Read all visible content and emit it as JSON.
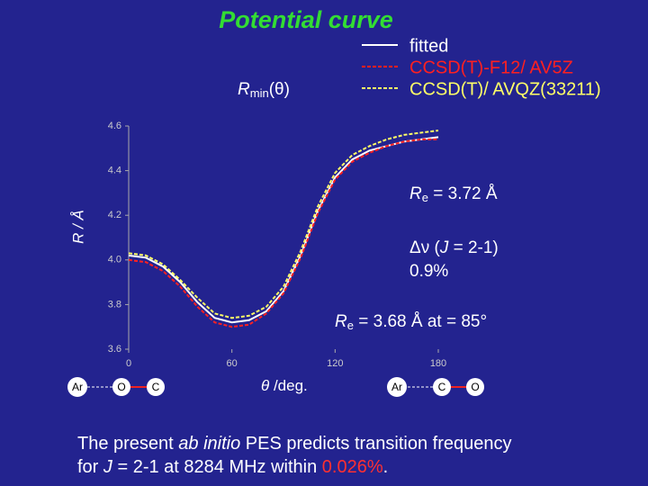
{
  "chart_data": {
    "type": "line",
    "title": "Potential curve",
    "rmin_label": [
      "R",
      "min",
      "(θ)"
    ],
    "xlabel": [
      "θ",
      " /deg."
    ],
    "ylabel": "R / Å",
    "x": [
      0,
      10,
      20,
      30,
      40,
      50,
      60,
      70,
      80,
      90,
      100,
      110,
      120,
      130,
      140,
      150,
      160,
      170,
      180
    ],
    "series": [
      {
        "name": "fitted",
        "color": "#ffffff",
        "dash": "none",
        "values": [
          4.02,
          4.01,
          3.97,
          3.9,
          3.81,
          3.74,
          3.72,
          3.73,
          3.77,
          3.86,
          4.02,
          4.22,
          4.37,
          4.45,
          4.49,
          4.51,
          4.53,
          4.54,
          4.55
        ]
      },
      {
        "name": "CCSD(T)-F12/ AV5Z",
        "color": "#ff2020",
        "dash": "4 2",
        "values": [
          4.0,
          3.99,
          3.95,
          3.88,
          3.79,
          3.72,
          3.7,
          3.71,
          3.76,
          3.85,
          4.01,
          4.21,
          4.36,
          4.44,
          4.48,
          4.51,
          4.53,
          4.54,
          4.54
        ]
      },
      {
        "name": "CCSD(T)/ AVQZ(33211)",
        "color": "#ffff66",
        "dash": "4 2",
        "values": [
          4.03,
          4.02,
          3.98,
          3.91,
          3.83,
          3.76,
          3.74,
          3.75,
          3.79,
          3.88,
          4.04,
          4.24,
          4.39,
          4.47,
          4.51,
          4.54,
          4.56,
          4.57,
          4.58
        ]
      }
    ],
    "xlim": [
      0,
      180
    ],
    "xticks": [
      0,
      60,
      120,
      180
    ],
    "ylim": [
      3.6,
      4.6
    ],
    "yticks": [
      {
        "value": 3.6,
        "label": "3.6"
      },
      {
        "value": 3.8,
        "label": "3.8"
      },
      {
        "value": 4.0,
        "label": "4.0"
      },
      {
        "value": 4.2,
        "label": "4.2"
      },
      {
        "value": 4.4,
        "label": "4.4"
      },
      {
        "value": 4.6,
        "label": "4.6"
      }
    ],
    "grid": false,
    "annotations": {
      "re1": [
        "R",
        "e",
        " = 3.72  Å"
      ],
      "dnu": [
        "Δν",
        " (",
        "J",
        " = 2-1)"
      ],
      "pct": "0.9%",
      "re2": [
        "R",
        "e",
        " = 3.68  Å  at = 85°"
      ]
    }
  },
  "molecules": {
    "left": [
      "Ar",
      "O",
      "C"
    ],
    "right": [
      "Ar",
      "C",
      "O"
    ]
  },
  "footer": {
    "line1": [
      "The present ",
      "ab initio",
      " PES predicts transition frequency"
    ],
    "line2": [
      "for ",
      "J",
      " = 2-1 at 8284 MHz within ",
      "0.026%",
      "."
    ]
  }
}
